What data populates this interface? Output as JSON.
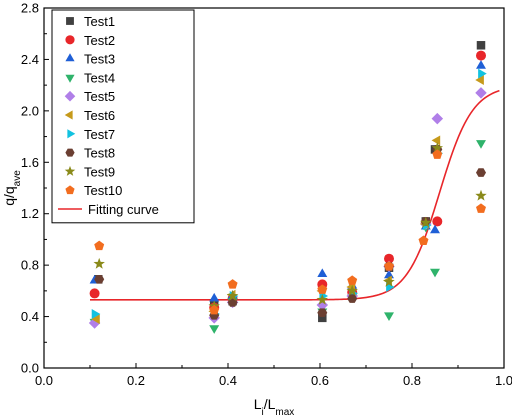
{
  "chart_data": {
    "type": "scatter",
    "xlabel": "Li/Lmax",
    "xlabel_main": "L",
    "xlabel_sub": "i",
    "xlabel_mid": "/L",
    "xlabel_sub2": "max",
    "ylabel": "q/qave",
    "ylabel_main": "q/q",
    "ylabel_sub": "ave",
    "xlim": [
      0.0,
      1.0
    ],
    "ylim": [
      0.0,
      2.8
    ],
    "xticks": [
      "0.0",
      "0.2",
      "0.4",
      "0.6",
      "0.8",
      "1.0"
    ],
    "yticks": [
      "0.0",
      "0.4",
      "0.8",
      "1.2",
      "1.6",
      "2.0",
      "2.4",
      "2.8"
    ],
    "legend_position": "top-left",
    "x": [
      0.11,
      0.37,
      0.41,
      0.61,
      0.67,
      0.75,
      0.83,
      0.85,
      0.95
    ],
    "series": [
      {
        "name": "Test1",
        "marker": "square",
        "color": "#404040",
        "points": [
          [
            0.118,
            0.69
          ],
          [
            0.37,
            0.5
          ],
          [
            0.41,
            0.52
          ],
          [
            0.605,
            0.39
          ],
          [
            0.67,
            0.58
          ],
          [
            0.75,
            0.78
          ],
          [
            0.83,
            1.14
          ],
          [
            0.85,
            1.7
          ],
          [
            0.95,
            2.51
          ]
        ]
      },
      {
        "name": "Test2",
        "marker": "circle",
        "color": "#e8262a",
        "points": [
          [
            0.11,
            0.58
          ],
          [
            0.37,
            0.47
          ],
          [
            0.41,
            0.54
          ],
          [
            0.605,
            0.65
          ],
          [
            0.67,
            0.59
          ],
          [
            0.75,
            0.85
          ],
          [
            0.83,
            1.13
          ],
          [
            0.855,
            1.14
          ],
          [
            0.95,
            2.43
          ]
        ]
      },
      {
        "name": "Test3",
        "marker": "triangle-up",
        "color": "#1f5fd6",
        "points": [
          [
            0.11,
            0.68
          ],
          [
            0.37,
            0.54
          ],
          [
            0.41,
            0.56
          ],
          [
            0.605,
            0.73
          ],
          [
            0.67,
            0.64
          ],
          [
            0.75,
            0.72
          ],
          [
            0.83,
            1.1
          ],
          [
            0.85,
            1.07
          ],
          [
            0.95,
            2.35
          ]
        ]
      },
      {
        "name": "Test4",
        "marker": "triangle-down",
        "color": "#2fb36b",
        "points": [
          [
            0.11,
            0.36
          ],
          [
            0.37,
            0.31
          ],
          [
            0.41,
            0.52
          ],
          [
            0.605,
            0.44
          ],
          [
            0.67,
            0.55
          ],
          [
            0.75,
            0.41
          ],
          [
            0.83,
            1.1
          ],
          [
            0.85,
            0.75
          ],
          [
            0.95,
            1.75
          ]
        ]
      },
      {
        "name": "Test5",
        "marker": "diamond",
        "color": "#b07fe8",
        "points": [
          [
            0.11,
            0.35
          ],
          [
            0.37,
            0.39
          ],
          [
            0.41,
            0.51
          ],
          [
            0.605,
            0.49
          ],
          [
            0.67,
            0.56
          ],
          [
            0.75,
            0.79
          ],
          [
            0.83,
            1.12
          ],
          [
            0.855,
            1.94
          ],
          [
            0.95,
            2.14
          ]
        ]
      },
      {
        "name": "Test6",
        "marker": "triangle-left",
        "color": "#c69a1b",
        "points": [
          [
            0.115,
            0.38
          ],
          [
            0.37,
            0.44
          ],
          [
            0.41,
            0.57
          ],
          [
            0.605,
            0.6
          ],
          [
            0.67,
            0.63
          ],
          [
            0.75,
            0.68
          ],
          [
            0.83,
            1.12
          ],
          [
            0.855,
            1.77
          ],
          [
            0.95,
            2.24
          ]
        ]
      },
      {
        "name": "Test7",
        "marker": "triangle-right",
        "color": "#12c2e0",
        "points": [
          [
            0.11,
            0.42
          ],
          [
            0.37,
            0.42
          ],
          [
            0.41,
            0.56
          ],
          [
            0.605,
            0.56
          ],
          [
            0.67,
            0.58
          ],
          [
            0.75,
            0.63
          ],
          [
            0.83,
            1.11
          ],
          [
            0.855,
            1.67
          ],
          [
            0.95,
            2.29
          ]
        ]
      },
      {
        "name": "Test8",
        "marker": "hexagon",
        "color": "#6b3f32",
        "points": [
          [
            0.12,
            0.69
          ],
          [
            0.37,
            0.41
          ],
          [
            0.41,
            0.51
          ],
          [
            0.605,
            0.43
          ],
          [
            0.67,
            0.54
          ],
          [
            0.75,
            0.79
          ],
          [
            0.83,
            1.14
          ],
          [
            0.855,
            1.7
          ],
          [
            0.95,
            1.52
          ]
        ]
      },
      {
        "name": "Test9",
        "marker": "star",
        "color": "#8a8a1a",
        "points": [
          [
            0.12,
            0.81
          ],
          [
            0.37,
            0.48
          ],
          [
            0.41,
            0.56
          ],
          [
            0.605,
            0.53
          ],
          [
            0.67,
            0.6
          ],
          [
            0.75,
            0.67
          ],
          [
            0.83,
            1.13
          ],
          [
            0.855,
            1.71
          ],
          [
            0.95,
            1.34
          ]
        ]
      },
      {
        "name": "Test10",
        "marker": "pentagon",
        "color": "#f26d1f",
        "points": [
          [
            0.12,
            0.95
          ],
          [
            0.37,
            0.45
          ],
          [
            0.41,
            0.65
          ],
          [
            0.605,
            0.61
          ],
          [
            0.67,
            0.68
          ],
          [
            0.75,
            0.79
          ],
          [
            0.825,
            0.99
          ],
          [
            0.855,
            1.66
          ],
          [
            0.95,
            1.24
          ]
        ]
      }
    ],
    "fit": {
      "name": "Fitting curve",
      "color": "#e8262a",
      "x_start": 0.1,
      "x_end": 0.99,
      "base": 0.53,
      "top": 2.2,
      "x0": 0.86,
      "k": 28
    }
  }
}
